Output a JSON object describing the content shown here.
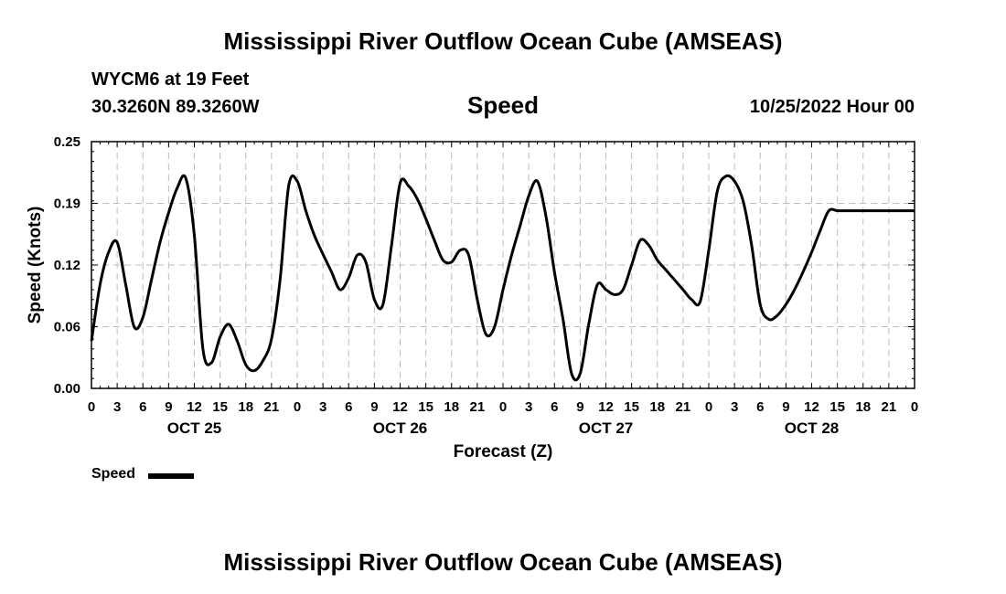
{
  "header": {
    "title": "Mississippi River Outflow Ocean Cube (AMSEAS)",
    "station": "WYCM6 at 19 Feet",
    "coords": "30.3260N  89.3260W",
    "variable": "Speed",
    "datetime": "10/25/2022 Hour 00"
  },
  "footer": {
    "title": "Mississippi River Outflow Ocean Cube (AMSEAS)"
  },
  "legend": {
    "label": "Speed"
  },
  "chart_data": {
    "type": "line",
    "xlabel": "Forecast (Z)",
    "ylabel": "Speed (Knots)",
    "ylim": [
      0,
      0.25
    ],
    "xlim": [
      0,
      96
    ],
    "grid": true,
    "y_ticks": [
      "0.00",
      "0.06",
      "0.12",
      "0.19",
      "0.25"
    ],
    "x_tick_labels": [
      "0",
      "3",
      "6",
      "9",
      "12",
      "15",
      "18",
      "21",
      "0",
      "3",
      "6",
      "9",
      "12",
      "15",
      "18",
      "21",
      "0",
      "3",
      "6",
      "9",
      "12",
      "15",
      "18",
      "21",
      "0",
      "3",
      "6",
      "9",
      "12",
      "15",
      "18",
      "21",
      "0"
    ],
    "date_labels": [
      {
        "label": "OCT 25",
        "hour": 12
      },
      {
        "label": "OCT 26",
        "hour": 36
      },
      {
        "label": "OCT 27",
        "hour": 60
      },
      {
        "label": "OCT 28",
        "hour": 84
      }
    ],
    "series": [
      {
        "name": "Speed",
        "color": "#000000",
        "x": [
          0,
          1,
          2,
          3,
          4,
          5,
          6,
          7,
          8,
          9,
          10,
          11,
          12,
          13,
          14,
          15,
          16,
          17,
          18,
          19,
          20,
          21,
          22,
          23,
          24,
          25,
          26,
          27,
          28,
          29,
          30,
          31,
          32,
          33,
          34,
          35,
          36,
          37,
          38,
          39,
          40,
          41,
          42,
          43,
          44,
          45,
          46,
          47,
          48,
          49,
          50,
          51,
          52,
          53,
          54,
          55,
          56,
          57,
          58,
          59,
          60,
          61,
          62,
          63,
          64,
          65,
          66,
          67,
          68,
          69,
          70,
          71,
          72,
          73,
          74,
          75,
          76,
          77,
          78,
          79,
          80,
          81,
          82,
          83,
          84,
          85,
          86,
          87,
          88,
          89,
          90,
          91,
          92,
          93,
          94,
          95,
          96
        ],
        "y": [
          0.048,
          0.105,
          0.138,
          0.148,
          0.105,
          0.062,
          0.072,
          0.11,
          0.148,
          0.178,
          0.203,
          0.213,
          0.155,
          0.04,
          0.026,
          0.052,
          0.065,
          0.048,
          0.024,
          0.018,
          0.028,
          0.05,
          0.11,
          0.205,
          0.21,
          0.18,
          0.155,
          0.136,
          0.118,
          0.1,
          0.112,
          0.135,
          0.128,
          0.09,
          0.085,
          0.145,
          0.208,
          0.205,
          0.192,
          0.172,
          0.15,
          0.13,
          0.128,
          0.14,
          0.135,
          0.09,
          0.055,
          0.062,
          0.1,
          0.135,
          0.165,
          0.195,
          0.21,
          0.175,
          0.118,
          0.07,
          0.015,
          0.015,
          0.065,
          0.105,
          0.1,
          0.095,
          0.1,
          0.125,
          0.15,
          0.145,
          0.13,
          0.12,
          0.11,
          0.1,
          0.09,
          0.088,
          0.14,
          0.2,
          0.215,
          0.21,
          0.19,
          0.145,
          0.085,
          0.07,
          0.074,
          0.085,
          0.1,
          0.118,
          0.138,
          0.16,
          0.18,
          0.18,
          0.18,
          0.18,
          0.18,
          0.18,
          0.18,
          0.18,
          0.18,
          0.18,
          0.18
        ]
      }
    ]
  }
}
